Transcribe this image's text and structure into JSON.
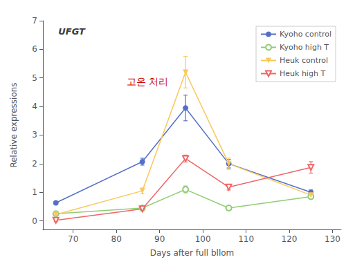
{
  "chart_data": {
    "type": "line",
    "title": "UFGT",
    "xlabel": "Days after full bllom",
    "ylabel": "Relative expressions",
    "annotations": [
      {
        "text": "고온 처리",
        "color": "#cc0000"
      }
    ],
    "x": [
      66,
      86,
      96,
      106,
      125
    ],
    "series": [
      {
        "name": "Kyoho control",
        "marker": "circle",
        "values": [
          0.63,
          2.07,
          3.95,
          2.0,
          1.0
        ],
        "errors": [
          0.05,
          0.12,
          0.45,
          0.15,
          0.08
        ]
      },
      {
        "name": "Kyoho high T",
        "marker": "open_circle",
        "values": [
          0.25,
          0.45,
          1.1,
          0.45,
          0.85
        ],
        "errors": [
          0.05,
          0.08,
          0.12,
          0.05,
          0.07
        ]
      },
      {
        "name": "Heuk control",
        "marker": "triangle_down",
        "values": [
          0.22,
          1.05,
          5.2,
          2.0,
          0.9
        ],
        "errors": [
          0.05,
          0.1,
          0.55,
          0.2,
          0.08
        ]
      },
      {
        "name": "Heuk high T",
        "marker": "open_triangle_down",
        "values": [
          0.02,
          0.42,
          2.18,
          1.18,
          1.87
        ],
        "errors": [
          0.05,
          0.07,
          0.12,
          0.1,
          0.2
        ]
      }
    ],
    "xlim": [
      63,
      132
    ],
    "ylim": [
      -0.3,
      7.0
    ],
    "xticks": [
      70,
      80,
      90,
      100,
      110,
      120,
      130
    ],
    "yticks": [
      0,
      1,
      2,
      3,
      4,
      5,
      6,
      7
    ],
    "grid": false,
    "legend": "upper right"
  }
}
